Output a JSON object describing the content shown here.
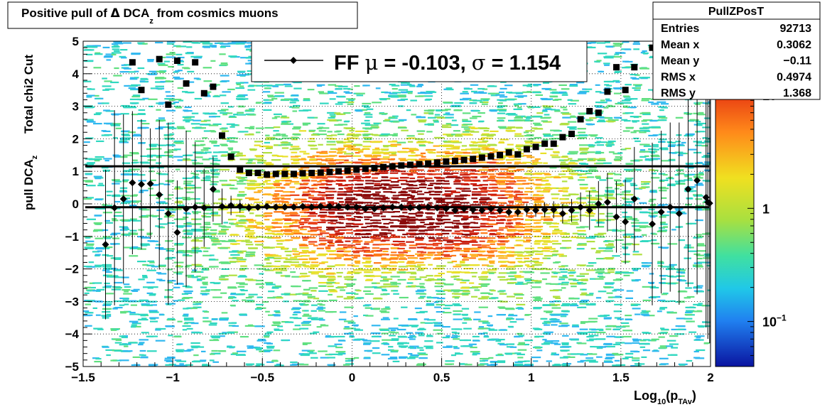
{
  "chart_data": {
    "type": "scatter",
    "title_main": "Positive pull of ",
    "title_delta": "Δ",
    "title_dca": " DCA",
    "title_sub": "z",
    "title_tail": "  from cosmics muons",
    "xlabel_main": "Log",
    "xlabel_sub1": "10",
    "xlabel_mid": "(p",
    "xlabel_sub2": "TAv",
    "xlabel_tail": ")",
    "ylabel_left_main": "pull DCA",
    "ylabel_left_sub": "z",
    "ylabel_right": "Total chi2 Cut",
    "xlim": [
      -1.5,
      2
    ],
    "ylim": [
      -5,
      5
    ],
    "x_ticks": [
      {
        "v": -1.5,
        "label": "−1.5"
      },
      {
        "v": -1,
        "label": "−1"
      },
      {
        "v": -0.5,
        "label": "−0.5"
      },
      {
        "v": 0,
        "label": "0"
      },
      {
        "v": 0.5,
        "label": "0.5"
      },
      {
        "v": 1,
        "label": "1"
      },
      {
        "v": 1.5,
        "label": "1.5"
      },
      {
        "v": 2,
        "label": "2"
      }
    ],
    "y_ticks": [
      {
        "v": 5,
        "label": "5"
      },
      {
        "v": 4,
        "label": "4"
      },
      {
        "v": 3,
        "label": "3"
      },
      {
        "v": 2,
        "label": "2"
      },
      {
        "v": 1,
        "label": "1"
      },
      {
        "v": 0,
        "label": "0"
      },
      {
        "v": -1,
        "label": "−1"
      },
      {
        "v": -2,
        "label": "−2"
      },
      {
        "v": -3,
        "label": "−3"
      },
      {
        "v": -4,
        "label": "−4"
      },
      {
        "v": -5,
        "label": "−5"
      }
    ],
    "grid": true,
    "legend": {
      "label_prefix": "FF ",
      "mu_symbol": "μ",
      "mu_text": " = -0.103, ",
      "sigma_symbol": "σ",
      "sigma_text": " =   1.154"
    },
    "stats": {
      "name": "PullZPosT",
      "rows": [
        {
          "label": "Entries",
          "value": "92713"
        },
        {
          "label": "Mean x",
          "value": "0.3062"
        },
        {
          "label": "Mean y",
          "value": "−0.11"
        },
        {
          "label": "RMS x",
          "value": "0.4974"
        },
        {
          "label": "RMS y",
          "value": "1.368"
        }
      ]
    },
    "colorbar": {
      "scale": "log",
      "labels": [
        {
          "base": "10",
          "exp": "",
          "v": 10
        },
        {
          "base": "1",
          "exp": "",
          "v": 1
        },
        {
          "base": "10",
          "exp": "−1",
          "v": 0.1
        }
      ]
    },
    "fit_lines": [
      {
        "name": "sigma_fit",
        "y": 1.154
      },
      {
        "name": "mean_fit",
        "y": -0.103
      }
    ],
    "sigma_series": {
      "marker": "square",
      "points": [
        [
          -1.225,
          4.35
        ],
        [
          -1.175,
          3.5
        ],
        [
          -1.075,
          4.45
        ],
        [
          -1.025,
          3.05
        ],
        [
          -0.975,
          4.4
        ],
        [
          -0.925,
          3.7
        ],
        [
          -0.875,
          4.35
        ],
        [
          -0.825,
          3.4
        ],
        [
          -0.775,
          3.6
        ],
        [
          -0.725,
          2.1
        ],
        [
          -0.675,
          1.45
        ],
        [
          -0.625,
          1.05
        ],
        [
          -0.575,
          0.95
        ],
        [
          -0.525,
          0.95
        ],
        [
          -0.475,
          0.9
        ],
        [
          -0.425,
          0.92
        ],
        [
          -0.375,
          0.92
        ],
        [
          -0.325,
          0.92
        ],
        [
          -0.275,
          0.94
        ],
        [
          -0.225,
          0.95
        ],
        [
          -0.175,
          0.96
        ],
        [
          -0.125,
          0.98
        ],
        [
          -0.075,
          1.0
        ],
        [
          -0.025,
          1.02
        ],
        [
          0.025,
          1.05
        ],
        [
          0.075,
          1.08
        ],
        [
          0.125,
          1.1
        ],
        [
          0.175,
          1.13
        ],
        [
          0.225,
          1.15
        ],
        [
          0.275,
          1.18
        ],
        [
          0.325,
          1.2
        ],
        [
          0.375,
          1.22
        ],
        [
          0.425,
          1.24
        ],
        [
          0.475,
          1.27
        ],
        [
          0.525,
          1.3
        ],
        [
          0.575,
          1.32
        ],
        [
          0.625,
          1.35
        ],
        [
          0.675,
          1.38
        ],
        [
          0.725,
          1.42
        ],
        [
          0.775,
          1.46
        ],
        [
          0.825,
          1.5
        ],
        [
          0.875,
          1.58
        ],
        [
          0.925,
          1.52
        ],
        [
          0.975,
          1.68
        ],
        [
          1.025,
          1.75
        ],
        [
          1.075,
          1.85
        ],
        [
          1.125,
          1.85
        ],
        [
          1.175,
          2.05
        ],
        [
          1.225,
          2.15
        ],
        [
          1.275,
          2.6
        ],
        [
          1.325,
          2.85
        ],
        [
          1.375,
          2.8
        ],
        [
          1.425,
          3.45
        ],
        [
          1.475,
          4.2
        ],
        [
          1.525,
          3.5
        ],
        [
          1.575,
          4.2
        ],
        [
          1.675,
          4.8
        ]
      ]
    },
    "mean_series": {
      "marker": "diamond",
      "points": [
        [
          -1.375,
          -1.25,
          2.3
        ],
        [
          -1.325,
          -0.12,
          3.0
        ],
        [
          -1.275,
          0.15,
          2.6
        ],
        [
          -1.225,
          0.65,
          2.2
        ],
        [
          -1.175,
          0.6,
          2.0
        ],
        [
          -1.125,
          0.62,
          1.7
        ],
        [
          -1.075,
          0.28,
          2.3
        ],
        [
          -1.025,
          -0.3,
          2.8
        ],
        [
          -0.975,
          -0.88,
          1.6
        ],
        [
          -0.925,
          -0.15,
          2.4
        ],
        [
          -0.875,
          -0.1,
          2.0
        ],
        [
          -0.825,
          -0.12,
          1.2
        ],
        [
          -0.775,
          0.45,
          1.0
        ],
        [
          -0.725,
          -0.08,
          0.55
        ],
        [
          -0.675,
          -0.05,
          0.3
        ],
        [
          -0.625,
          -0.07,
          0.2
        ],
        [
          -0.575,
          -0.12,
          0.12
        ],
        [
          -0.525,
          -0.1,
          0.1
        ],
        [
          -0.475,
          -0.08,
          0.08
        ],
        [
          -0.425,
          -0.1,
          0.07
        ],
        [
          -0.375,
          -0.1,
          0.06
        ],
        [
          -0.325,
          -0.1,
          0.06
        ],
        [
          -0.275,
          -0.08,
          0.05
        ],
        [
          -0.225,
          -0.1,
          0.05
        ],
        [
          -0.175,
          -0.08,
          0.05
        ],
        [
          -0.125,
          -0.08,
          0.05
        ],
        [
          -0.075,
          -0.08,
          0.05
        ],
        [
          -0.025,
          -0.1,
          0.05
        ],
        [
          0.025,
          -0.1,
          0.05
        ],
        [
          0.075,
          -0.15,
          0.05
        ],
        [
          0.125,
          -0.15,
          0.05
        ],
        [
          0.175,
          -0.12,
          0.05
        ],
        [
          0.225,
          -0.1,
          0.05
        ],
        [
          0.275,
          -0.1,
          0.05
        ],
        [
          0.325,
          -0.12,
          0.05
        ],
        [
          0.375,
          -0.12,
          0.05
        ],
        [
          0.425,
          -0.1,
          0.06
        ],
        [
          0.475,
          -0.12,
          0.06
        ],
        [
          0.525,
          -0.15,
          0.07
        ],
        [
          0.575,
          -0.2,
          0.07
        ],
        [
          0.625,
          -0.15,
          0.08
        ],
        [
          0.675,
          -0.18,
          0.09
        ],
        [
          0.725,
          -0.2,
          0.1
        ],
        [
          0.775,
          -0.15,
          0.11
        ],
        [
          0.825,
          -0.2,
          0.12
        ],
        [
          0.875,
          -0.25,
          0.14
        ],
        [
          0.925,
          -0.25,
          0.15
        ],
        [
          0.975,
          -0.18,
          0.17
        ],
        [
          1.025,
          -0.2,
          0.2
        ],
        [
          1.075,
          -0.18,
          0.23
        ],
        [
          1.125,
          -0.18,
          0.26
        ],
        [
          1.175,
          -0.3,
          0.3
        ],
        [
          1.225,
          -0.2,
          0.35
        ],
        [
          1.275,
          -0.1,
          0.45
        ],
        [
          1.325,
          -0.2,
          0.6
        ],
        [
          1.375,
          0.0,
          0.7
        ],
        [
          1.425,
          0.05,
          0.9
        ],
        [
          1.475,
          -0.4,
          1.1
        ],
        [
          1.525,
          -0.55,
          1.3
        ],
        [
          1.575,
          0.15,
          1.6
        ],
        [
          1.675,
          -0.62,
          2.5
        ],
        [
          1.725,
          -0.25,
          2.5
        ],
        [
          1.775,
          -0.1,
          2.6
        ],
        [
          1.825,
          -0.3,
          2.8
        ],
        [
          1.875,
          0.45,
          3.0
        ],
        [
          1.925,
          0.72,
          3.5
        ],
        [
          1.975,
          0.2,
          4.0
        ],
        [
          1.985,
          0.05,
          4.2
        ],
        [
          1.995,
          0.02,
          4.3
        ]
      ]
    }
  }
}
